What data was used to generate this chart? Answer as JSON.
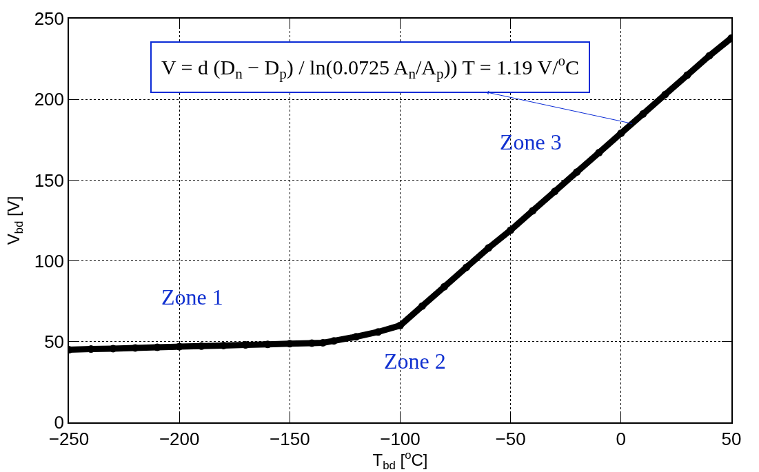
{
  "chart_data": {
    "type": "line",
    "xlabel": "T$_{bd}$ [$^{o}$C]",
    "ylabel": "V$_{bd}$ [V]",
    "xlim": [
      -250,
      50
    ],
    "xticks": [
      -250,
      -200,
      -150,
      -100,
      -50,
      0,
      50
    ],
    "ylim": [
      0,
      250
    ],
    "yticks": [
      0,
      50,
      100,
      150,
      200,
      250
    ],
    "grid": true,
    "marker": "circle",
    "line_style": "solid",
    "series": [
      {
        "color": "#000000",
        "x": [
          -250,
          -240,
          -230,
          -220,
          -210,
          -200,
          -190,
          -180,
          -170,
          -160,
          -150,
          -140,
          -135,
          -130,
          -120,
          -110,
          -100,
          -90,
          -80,
          -70,
          -60,
          -50,
          -40,
          -30,
          -20,
          -10,
          0,
          10,
          20,
          30,
          40,
          50
        ],
        "values": [
          45,
          45.4,
          45.7,
          46.1,
          46.5,
          46.9,
          47.2,
          47.6,
          48,
          48.3,
          48.7,
          49.1,
          49.3,
          50.5,
          53,
          56,
          60,
          72,
          84,
          96,
          108,
          119,
          131,
          143,
          155,
          167,
          179,
          191,
          203,
          215,
          227,
          238
        ]
      }
    ],
    "annotations": [
      "V = d (D$_{n}$ − D$_{p}$) / ln(0.0725 A$_{n}$/A$_{p}$)) T = 1.19 V/$^{o}$C",
      "Zone 1",
      "Zone 2",
      "Zone 3"
    ]
  }
}
